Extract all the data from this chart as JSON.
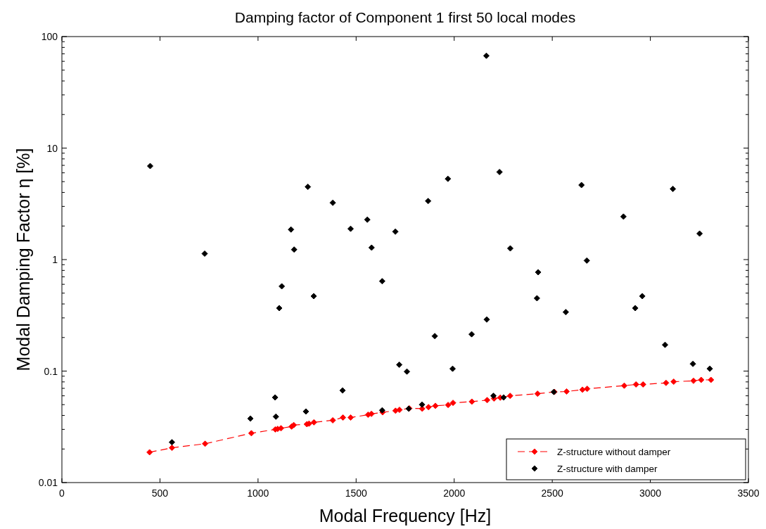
{
  "chart_data": {
    "type": "scatter",
    "title": "Damping factor of Component 1 first 50 local modes",
    "xlabel": "Modal Frequency [Hz]",
    "ylabel": "Modal Damping Factor η [%]",
    "log": "y",
    "grid": false,
    "legend": "bottom right",
    "xlim": [
      0,
      3500
    ],
    "xticks": [
      0,
      500,
      1000,
      1500,
      2000,
      2500,
      3000,
      3500
    ],
    "ylim": [
      0.01,
      100
    ],
    "yticks": [
      0.01,
      {
        "value": 0.02,
        "label": null
      },
      {
        "value": 0.03,
        "label": null
      },
      {
        "value": 0.04,
        "label": null
      },
      {
        "value": 0.05,
        "label": null
      },
      {
        "value": 0.06,
        "label": null
      },
      {
        "value": 0.07,
        "label": null
      },
      {
        "value": 0.08,
        "label": null
      },
      {
        "value": 0.09,
        "label": null
      },
      0.1,
      {
        "value": 0.2,
        "label": null
      },
      {
        "value": 0.3,
        "label": null
      },
      {
        "value": 0.4,
        "label": null
      },
      {
        "value": 0.5,
        "label": null
      },
      {
        "value": 0.6,
        "label": null
      },
      {
        "value": 0.7,
        "label": null
      },
      {
        "value": 0.8,
        "label": null
      },
      {
        "value": 0.9,
        "label": null
      },
      1,
      {
        "value": 2,
        "label": null
      },
      {
        "value": 3,
        "label": null
      },
      {
        "value": 4,
        "label": null
      },
      {
        "value": 5,
        "label": null
      },
      {
        "value": 6,
        "label": null
      },
      {
        "value": 7,
        "label": null
      },
      {
        "value": 8,
        "label": null
      },
      {
        "value": 9,
        "label": null
      },
      10,
      {
        "value": 20,
        "label": null
      },
      {
        "value": 30,
        "label": null
      },
      {
        "value": 40,
        "label": null
      },
      {
        "value": 50,
        "label": null
      },
      {
        "value": 60,
        "label": null
      },
      {
        "value": 70,
        "label": null
      },
      {
        "value": 80,
        "label": null
      },
      {
        "value": 90,
        "label": null
      },
      100
    ],
    "series": [
      {
        "name": "Z-structure without damper",
        "type": "line",
        "color": "#ff0000",
        "marker": "diamond",
        "line_style": "dashed",
        "x": [
          447,
          561,
          730,
          966,
          1088,
          1100,
          1117,
          1171,
          1182,
          1249,
          1260,
          1285,
          1381,
          1433,
          1472,
          1561,
          1578,
          1635,
          1701,
          1721,
          1771,
          1837,
          1869,
          1904,
          1969,
          1994,
          2090,
          2168,
          2203,
          2235,
          2285,
          2425,
          2511,
          2573,
          2654,
          2678,
          2867,
          2927,
          2963,
          3080,
          3119,
          3220,
          3259,
          3309
        ],
        "values": [
          0.0187,
          0.0205,
          0.0223,
          0.0277,
          0.03,
          0.0303,
          0.0307,
          0.0318,
          0.0328,
          0.0334,
          0.0338,
          0.0347,
          0.0362,
          0.0383,
          0.0383,
          0.0406,
          0.0413,
          0.0427,
          0.0441,
          0.0449,
          0.0463,
          0.046,
          0.0475,
          0.0488,
          0.0497,
          0.0519,
          0.0532,
          0.0549,
          0.0567,
          0.0578,
          0.06,
          0.0627,
          0.0651,
          0.0656,
          0.0681,
          0.0694,
          0.074,
          0.0759,
          0.0759,
          0.0783,
          0.0803,
          0.0818,
          0.0834,
          0.0834
        ]
      },
      {
        "name": "Z-structure with damper",
        "color": "#000000",
        "marker": "diamond",
        "x": [
          450,
          728,
          1254,
          1381,
          1168,
          1472,
          1557,
          1184,
          1579,
          1700,
          1121,
          1284,
          1108,
          1633,
          1720,
          1759,
          1431,
          1087,
          1244,
          1091,
          961,
          1633,
          1768,
          1867,
          1968,
          2231,
          2649,
          3115,
          2863,
          3251,
          2286,
          2676,
          2428,
          2422,
          2959,
          2923,
          2569,
          2166,
          1901,
          2089,
          3075,
          1992,
          3217,
          3303,
          1836,
          2200,
          2252,
          2508,
          2164,
          561
        ],
        "values": [
          6.9,
          1.13,
          4.49,
          3.23,
          1.86,
          1.89,
          2.28,
          1.23,
          1.28,
          1.78,
          0.576,
          0.47,
          0.367,
          0.64,
          0.114,
          0.099,
          0.067,
          0.058,
          0.0434,
          0.039,
          0.0375,
          0.0445,
          0.046,
          3.35,
          5.3,
          6.1,
          4.66,
          4.3,
          2.43,
          1.71,
          1.26,
          0.98,
          0.77,
          0.45,
          0.47,
          0.367,
          0.338,
          0.29,
          0.206,
          0.214,
          0.172,
          0.105,
          0.116,
          0.105,
          0.05,
          0.06,
          0.058,
          0.065,
          67.3,
          0.023
        ]
      }
    ]
  }
}
